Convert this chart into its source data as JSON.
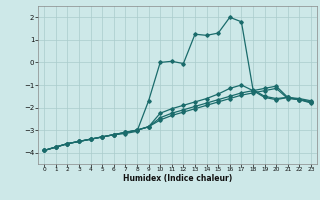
{
  "xlabel": "Humidex (Indice chaleur)",
  "xlim": [
    -0.5,
    23.5
  ],
  "ylim": [
    -4.5,
    2.5
  ],
  "yticks": [
    -4,
    -3,
    -2,
    -1,
    0,
    1,
    2
  ],
  "xticks": [
    0,
    1,
    2,
    3,
    4,
    5,
    6,
    7,
    8,
    9,
    10,
    11,
    12,
    13,
    14,
    15,
    16,
    17,
    18,
    19,
    20,
    21,
    22,
    23
  ],
  "background_color": "#cde8e8",
  "line_color": "#1a6b6b",
  "grid_color": "#aacccc",
  "line_peak_x": [
    0,
    1,
    2,
    3,
    4,
    5,
    6,
    7,
    8,
    9,
    10,
    11,
    12,
    13,
    14,
    15,
    16,
    17,
    18,
    19,
    20,
    21,
    22,
    23
  ],
  "line_peak_y": [
    -3.9,
    -3.75,
    -3.6,
    -3.5,
    -3.4,
    -3.3,
    -3.2,
    -3.15,
    -3.05,
    -1.7,
    0.0,
    0.05,
    -0.05,
    1.25,
    1.2,
    1.3,
    2.0,
    1.8,
    -1.2,
    -1.5,
    -1.6,
    -1.55,
    -1.65,
    -1.75
  ],
  "line_mid1_x": [
    0,
    1,
    2,
    3,
    4,
    5,
    6,
    7,
    8,
    9,
    10,
    11,
    12,
    13,
    14,
    15,
    16,
    17,
    18,
    19,
    20,
    21,
    22,
    23
  ],
  "line_mid1_y": [
    -3.9,
    -3.75,
    -3.6,
    -3.5,
    -3.4,
    -3.3,
    -3.2,
    -3.1,
    -3.0,
    -2.85,
    -2.25,
    -2.05,
    -1.9,
    -1.75,
    -1.6,
    -1.4,
    -1.15,
    -1.0,
    -1.25,
    -1.55,
    -1.65,
    -1.55,
    -1.65,
    -1.75
  ],
  "line_mid2_x": [
    0,
    1,
    2,
    3,
    4,
    5,
    6,
    7,
    8,
    9,
    10,
    11,
    12,
    13,
    14,
    15,
    16,
    17,
    18,
    19,
    20,
    21,
    22,
    23
  ],
  "line_mid2_y": [
    -3.9,
    -3.75,
    -3.6,
    -3.5,
    -3.4,
    -3.3,
    -3.2,
    -3.1,
    -3.0,
    -2.85,
    -2.45,
    -2.25,
    -2.1,
    -1.95,
    -1.8,
    -1.65,
    -1.5,
    -1.35,
    -1.25,
    -1.15,
    -1.05,
    -1.55,
    -1.6,
    -1.7
  ],
  "line_bot_x": [
    0,
    1,
    2,
    3,
    4,
    5,
    6,
    7,
    8,
    9,
    10,
    11,
    12,
    13,
    14,
    15,
    16,
    17,
    18,
    19,
    20,
    21,
    22,
    23
  ],
  "line_bot_y": [
    -3.9,
    -3.75,
    -3.6,
    -3.5,
    -3.4,
    -3.3,
    -3.2,
    -3.1,
    -3.0,
    -2.85,
    -2.55,
    -2.35,
    -2.2,
    -2.05,
    -1.9,
    -1.75,
    -1.6,
    -1.45,
    -1.35,
    -1.25,
    -1.15,
    -1.6,
    -1.65,
    -1.8
  ]
}
